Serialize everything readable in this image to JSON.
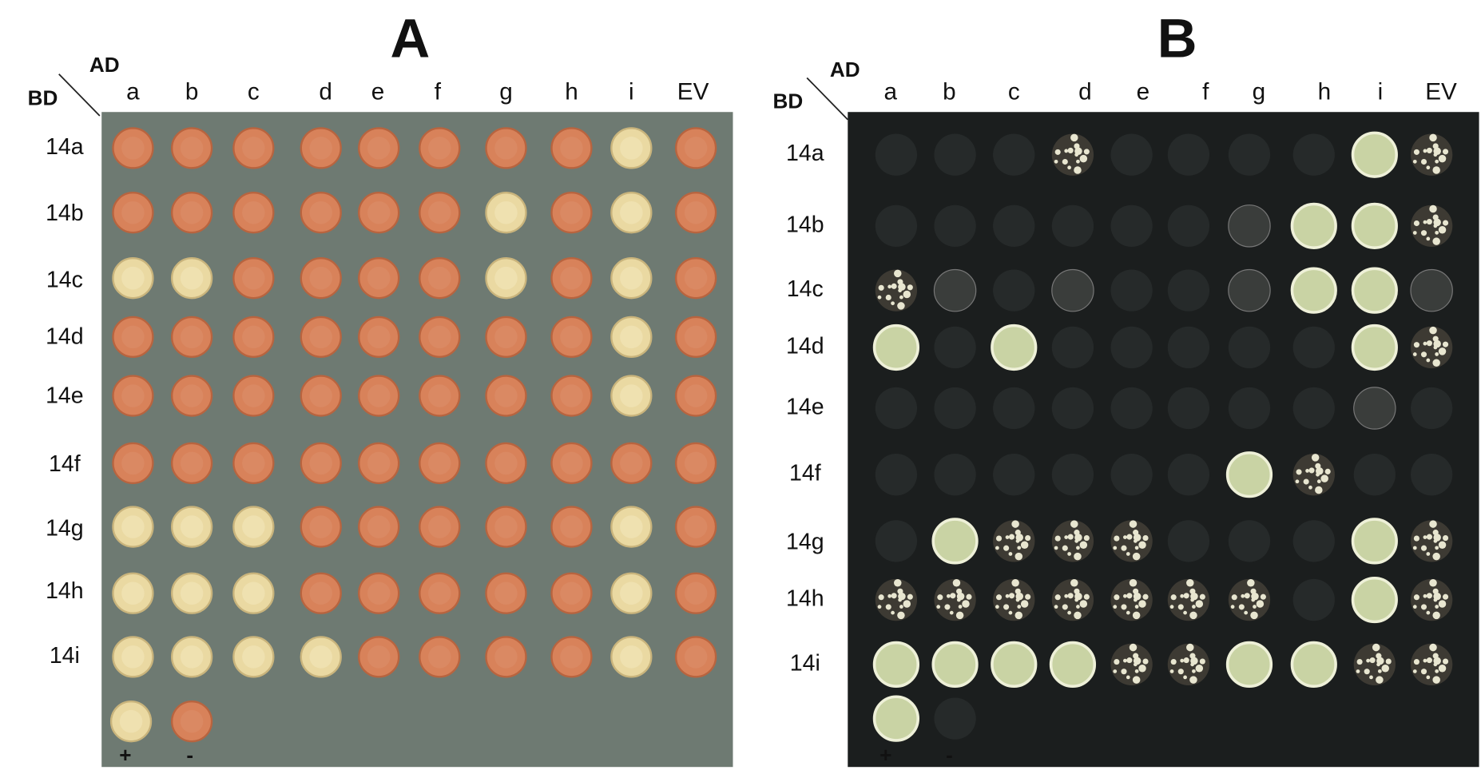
{
  "panels": [
    {
      "title": "A",
      "ad_label": "AD",
      "bd_label": "BD",
      "columns": [
        "a",
        "b",
        "c",
        "d",
        "e",
        "f",
        "g",
        "h",
        "i",
        "EV"
      ],
      "rows": [
        "14a",
        "14b",
        "14c",
        "14d",
        "14e",
        "14f",
        "14g",
        "14h",
        "14i"
      ],
      "controls": [
        "+",
        "-"
      ]
    },
    {
      "title": "B",
      "ad_label": "AD",
      "bd_label": "BD",
      "columns": [
        "a",
        "b",
        "c",
        "d",
        "e",
        "f",
        "g",
        "h",
        "i",
        "EV"
      ],
      "rows": [
        "14a",
        "14b",
        "14c",
        "14d",
        "14e",
        "14f",
        "14g",
        "14h",
        "14i"
      ],
      "controls": [
        "+",
        "-"
      ]
    }
  ]
}
